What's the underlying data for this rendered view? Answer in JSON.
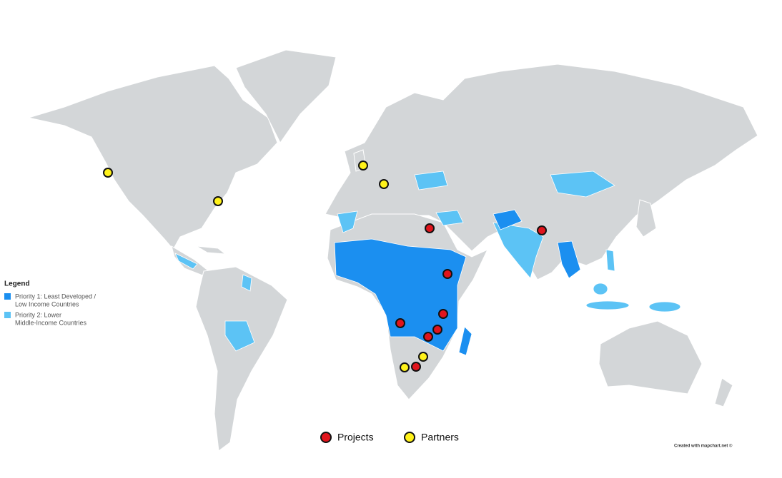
{
  "legend": {
    "title": "Legend",
    "items": [
      {
        "lines": [
          "Priority 1: Least Developed /",
          "Low Income Countries"
        ],
        "color": "#1b8ff0"
      },
      {
        "lines": [
          "Priority 2: Lower",
          "Middle-Income Countries"
        ],
        "color": "#5cc3f5"
      }
    ]
  },
  "markers": [
    {
      "label": "Projects",
      "color": "#e0141c"
    },
    {
      "label": "Partners",
      "color": "#fff21a"
    }
  ],
  "credit": "Created with mapchart.net ©"
}
